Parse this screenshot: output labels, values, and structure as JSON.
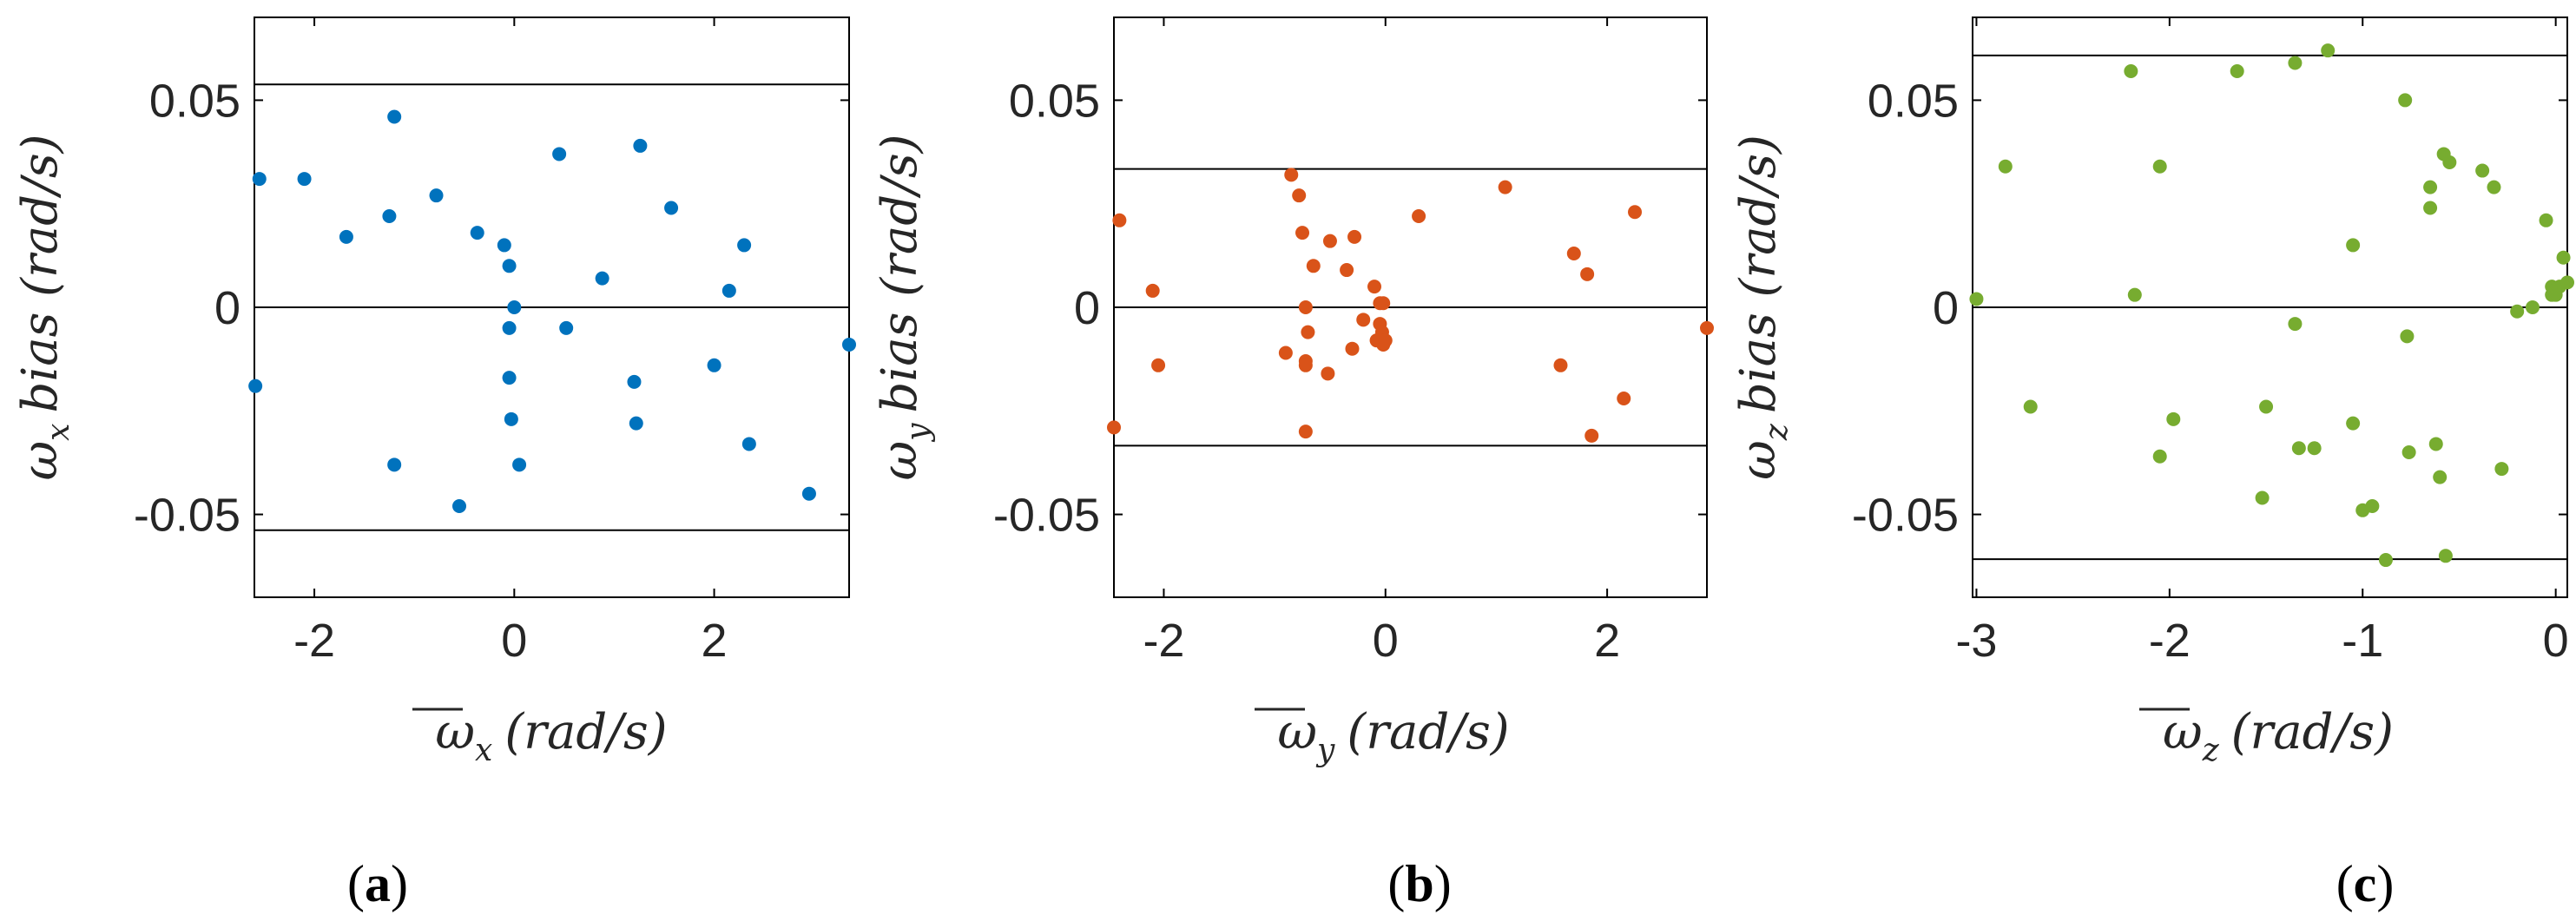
{
  "chart_data": [
    {
      "type": "scatter",
      "panel": "(a)",
      "panel_letter": "a",
      "color": "#0072BD",
      "xlabel": "ω̅x (rad/s)",
      "xlabel_symbol": "ω",
      "xlabel_sub": "x",
      "xlabel_units": "(rad/s)",
      "ylabel": "ωx bias (rad/s)",
      "ylabel_symbol": "ω",
      "ylabel_sub": "x",
      "ylabel_text": "bias (rad/s)",
      "xlim": [
        -2.6,
        3.35
      ],
      "ylim": [
        -0.07,
        0.07
      ],
      "xticks": [
        -2,
        0,
        2
      ],
      "xtick_labels": [
        "-2",
        "0",
        "2"
      ],
      "yticks": [
        -0.05,
        0,
        0.05
      ],
      "ytick_labels": [
        "-0.05",
        "0",
        "0.05"
      ],
      "hlines": [
        0.0538,
        0,
        -0.0538
      ],
      "x": [
        -2.55,
        -2.59,
        -2.1,
        -1.68,
        -1.25,
        -1.2,
        -1.2,
        -0.78,
        -0.37,
        -0.1,
        -0.05,
        -0.05,
        -0.03,
        0.0,
        -0.05,
        0.05,
        0.45,
        0.52,
        0.88,
        1.2,
        1.22,
        1.26,
        1.57,
        2.0,
        2.15,
        2.3,
        2.35,
        2.95,
        3.35,
        -0.55
      ],
      "y": [
        0.031,
        -0.019,
        0.031,
        0.017,
        0.022,
        0.046,
        -0.038,
        0.027,
        0.018,
        0.015,
        0.01,
        -0.017,
        -0.027,
        0.0,
        -0.005,
        -0.038,
        0.037,
        -0.005,
        0.007,
        -0.018,
        -0.028,
        0.039,
        0.024,
        -0.014,
        0.004,
        0.015,
        -0.033,
        -0.045,
        -0.009,
        -0.048
      ]
    },
    {
      "type": "scatter",
      "panel": "(b)",
      "panel_letter": "b",
      "color": "#D95319",
      "xlabel": "ω̅y (rad/s)",
      "xlabel_symbol": "ω",
      "xlabel_sub": "y",
      "xlabel_units": "(rad/s)",
      "ylabel": "ωy bias (rad/s)",
      "ylabel_symbol": "ω",
      "ylabel_sub": "y",
      "ylabel_text": "bias (rad/s)",
      "xlim": [
        -2.45,
        2.9
      ],
      "ylim": [
        -0.07,
        0.07
      ],
      "xticks": [
        -2,
        0,
        2
      ],
      "xtick_labels": [
        "-2",
        "0",
        "2"
      ],
      "yticks": [
        -0.05,
        0,
        0.05
      ],
      "ytick_labels": [
        "-0.05",
        "0",
        "0.05"
      ],
      "hlines": [
        0.0334,
        0,
        -0.0334
      ],
      "x": [
        -2.4,
        -2.45,
        -2.1,
        -2.05,
        -0.9,
        -0.85,
        -0.78,
        -0.75,
        -0.72,
        -0.7,
        -0.72,
        -0.65,
        -0.5,
        -0.52,
        -0.35,
        -0.3,
        -0.28,
        -0.2,
        -0.1,
        -0.05,
        -0.05,
        -0.02,
        -0.08,
        -0.02,
        -0.03,
        0.0,
        0.3,
        1.08,
        1.58,
        1.7,
        1.82,
        1.86,
        2.15,
        2.25,
        2.9,
        -0.72,
        -0.72
      ],
      "y": [
        0.021,
        -0.029,
        0.004,
        -0.014,
        -0.011,
        0.032,
        0.027,
        0.018,
        -0.013,
        -0.006,
        -0.014,
        0.01,
        0.016,
        -0.016,
        0.009,
        -0.01,
        0.017,
        -0.003,
        0.005,
        0.001,
        -0.004,
        0.001,
        -0.008,
        -0.009,
        -0.006,
        -0.008,
        0.022,
        0.029,
        -0.014,
        0.013,
        0.008,
        -0.031,
        -0.022,
        0.023,
        -0.005,
        -0.03,
        0.0
      ]
    },
    {
      "type": "scatter",
      "panel": "(c)",
      "panel_letter": "c",
      "color": "#77AC30",
      "xlabel": "ω̅z (rad/s)",
      "xlabel_symbol": "ω",
      "xlabel_sub": "z",
      "xlabel_units": "(rad/s)",
      "ylabel": "ωz bias (rad/s)",
      "ylabel_symbol": "ω",
      "ylabel_sub": "z",
      "ylabel_text": "bias (rad/s)",
      "xlim": [
        -3.02,
        0.06
      ],
      "ylim": [
        -0.07,
        0.07
      ],
      "xticks": [
        -3,
        -2,
        -1,
        0
      ],
      "xtick_labels": [
        "-3",
        "-2",
        "-1",
        "0"
      ],
      "yticks": [
        -0.05,
        0,
        0.05
      ],
      "ytick_labels": [
        "-0.05",
        "0",
        "0.05"
      ],
      "hlines": [
        0.0608,
        0,
        -0.0608
      ],
      "x": [
        -3.0,
        -2.85,
        -2.72,
        -2.2,
        -2.18,
        -2.05,
        -2.05,
        -1.98,
        -1.65,
        -1.52,
        -1.5,
        -1.35,
        -1.35,
        -1.33,
        -1.25,
        -1.18,
        -1.05,
        -1.05,
        -1.0,
        -0.95,
        -0.88,
        -0.78,
        -0.77,
        -0.76,
        -0.65,
        -0.6,
        -0.65,
        -0.62,
        -0.58,
        -0.57,
        -0.55,
        -0.38,
        -0.32,
        -0.28,
        -0.12,
        -0.05,
        -0.02,
        -0.02,
        -0.01,
        0.0,
        0.02,
        0.04,
        0.06,
        -0.2
      ],
      "y": [
        0.002,
        0.034,
        -0.024,
        0.057,
        0.003,
        0.034,
        -0.036,
        -0.027,
        0.057,
        -0.046,
        -0.024,
        0.059,
        -0.004,
        -0.034,
        -0.034,
        0.062,
        0.015,
        -0.028,
        -0.049,
        -0.048,
        -0.061,
        0.05,
        -0.007,
        -0.035,
        0.029,
        -0.041,
        0.024,
        -0.033,
        0.037,
        -0.06,
        0.035,
        0.033,
        0.029,
        -0.039,
        0.0,
        0.021,
        0.005,
        0.003,
        0.004,
        0.003,
        0.005,
        0.012,
        0.006,
        -0.001
      ]
    }
  ]
}
